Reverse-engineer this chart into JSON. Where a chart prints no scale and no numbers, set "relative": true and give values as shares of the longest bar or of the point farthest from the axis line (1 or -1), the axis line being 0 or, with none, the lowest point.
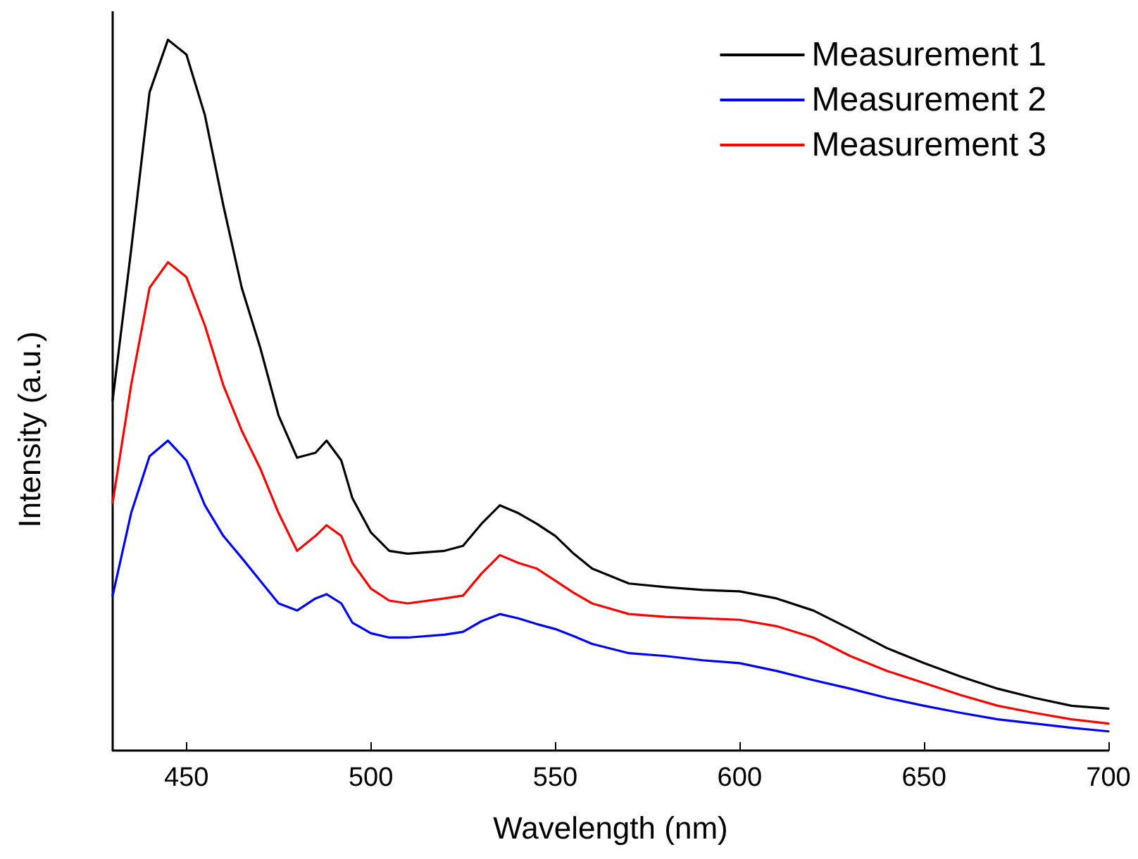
{
  "chart_data": {
    "type": "line",
    "xlabel": "Wavelength (nm)",
    "ylabel": "Intensity (a.u.)",
    "relative": true,
    "x": [
      430,
      435,
      440,
      445,
      450,
      455,
      460,
      465,
      470,
      475,
      480,
      485,
      488,
      492,
      495,
      500,
      505,
      510,
      520,
      525,
      530,
      535,
      540,
      545,
      550,
      555,
      560,
      570,
      580,
      590,
      600,
      610,
      620,
      630,
      640,
      650,
      660,
      670,
      680,
      690,
      700
    ],
    "xlim": [
      430,
      700
    ],
    "xticks": [
      450,
      500,
      550,
      600,
      650,
      700
    ],
    "series": [
      {
        "name": "Measurement 1",
        "color": "#000000",
        "values": [
          0.493,
          0.704,
          0.926,
          1,
          0.979,
          0.894,
          0.767,
          0.651,
          0.567,
          0.471,
          0.412,
          0.419,
          0.436,
          0.408,
          0.355,
          0.307,
          0.281,
          0.277,
          0.281,
          0.288,
          0.319,
          0.345,
          0.334,
          0.319,
          0.302,
          0.277,
          0.256,
          0.235,
          0.23,
          0.226,
          0.224,
          0.214,
          0.197,
          0.171,
          0.144,
          0.123,
          0.104,
          0.087,
          0.074,
          0.063,
          0.059
        ]
      },
      {
        "name": "Measurement 2",
        "color": "#0000ff",
        "values": [
          0.218,
          0.334,
          0.414,
          0.436,
          0.408,
          0.345,
          0.302,
          0.271,
          0.239,
          0.207,
          0.197,
          0.214,
          0.22,
          0.207,
          0.18,
          0.165,
          0.159,
          0.159,
          0.163,
          0.167,
          0.182,
          0.192,
          0.186,
          0.178,
          0.171,
          0.161,
          0.15,
          0.137,
          0.133,
          0.127,
          0.123,
          0.112,
          0.099,
          0.087,
          0.074,
          0.063,
          0.053,
          0.044,
          0.038,
          0.032,
          0.027
        ]
      },
      {
        "name": "Measurement 3",
        "color": "#ff0000",
        "values": [
          0.349,
          0.514,
          0.651,
          0.687,
          0.666,
          0.598,
          0.514,
          0.45,
          0.397,
          0.334,
          0.281,
          0.302,
          0.317,
          0.302,
          0.264,
          0.228,
          0.211,
          0.207,
          0.214,
          0.218,
          0.249,
          0.275,
          0.264,
          0.256,
          0.239,
          0.222,
          0.207,
          0.192,
          0.188,
          0.186,
          0.184,
          0.175,
          0.159,
          0.133,
          0.112,
          0.095,
          0.078,
          0.063,
          0.053,
          0.044,
          0.038
        ]
      }
    ],
    "legend": "top right",
    "grid": false,
    "marker": "none",
    "line_style": "solid"
  }
}
